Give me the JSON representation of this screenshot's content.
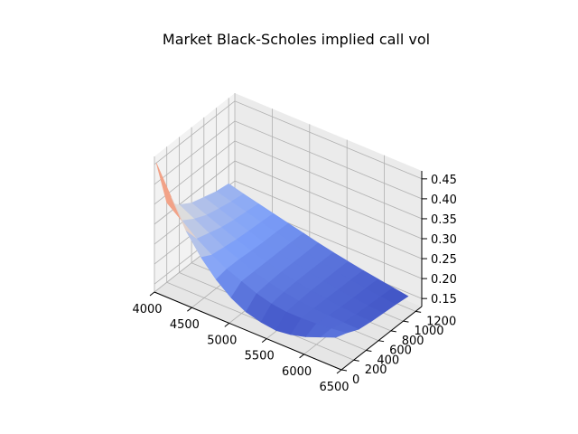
{
  "chart_data": {
    "type": "surface",
    "title": "Market Black-Scholes implied call vol",
    "xlabel": "",
    "ylabel": "",
    "zlabel": "",
    "xlim": [
      4000,
      6500
    ],
    "ylim": [
      0,
      1300
    ],
    "zlim": [
      0.13,
      0.47
    ],
    "x_ticks": [
      "4000",
      "4500",
      "5000",
      "5500",
      "6000",
      "6500"
    ],
    "y_ticks": [
      "0",
      "200",
      "400",
      "600",
      "800",
      "1000",
      "1200"
    ],
    "z_ticks": [
      "0.15",
      "0.20",
      "0.25",
      "0.30",
      "0.35",
      "0.40",
      "0.45"
    ],
    "colormap": "coolwarm",
    "surface": {
      "strikes": [
        4000,
        4200,
        4400,
        4600,
        4800,
        5000,
        5200,
        5400,
        5600,
        5800,
        6000,
        6200,
        6400
      ],
      "maturities_days": [
        30,
        200,
        400,
        600,
        800,
        1000,
        1200
      ],
      "implied_vol": [
        [
          0.45,
          0.38,
          0.31,
          0.26,
          0.22,
          0.19,
          0.17,
          0.16,
          0.155,
          0.16,
          0.17,
          0.185,
          0.2
        ],
        [
          0.33,
          0.3,
          0.27,
          0.245,
          0.225,
          0.21,
          0.195,
          0.185,
          0.18,
          0.18,
          0.182,
          0.185,
          0.19
        ],
        [
          0.3,
          0.28,
          0.26,
          0.24,
          0.225,
          0.21,
          0.198,
          0.19,
          0.183,
          0.18,
          0.178,
          0.176,
          0.175
        ],
        [
          0.28,
          0.265,
          0.25,
          0.235,
          0.222,
          0.21,
          0.2,
          0.192,
          0.185,
          0.18,
          0.175,
          0.172,
          0.17
        ],
        [
          0.27,
          0.257,
          0.244,
          0.232,
          0.22,
          0.21,
          0.2,
          0.192,
          0.185,
          0.179,
          0.174,
          0.17,
          0.167
        ],
        [
          0.26,
          0.25,
          0.24,
          0.23,
          0.22,
          0.21,
          0.2,
          0.192,
          0.185,
          0.179,
          0.173,
          0.168,
          0.164
        ],
        [
          0.255,
          0.245,
          0.236,
          0.227,
          0.218,
          0.209,
          0.2,
          0.192,
          0.185,
          0.178,
          0.172,
          0.166,
          0.16
        ]
      ]
    },
    "grid": true
  }
}
